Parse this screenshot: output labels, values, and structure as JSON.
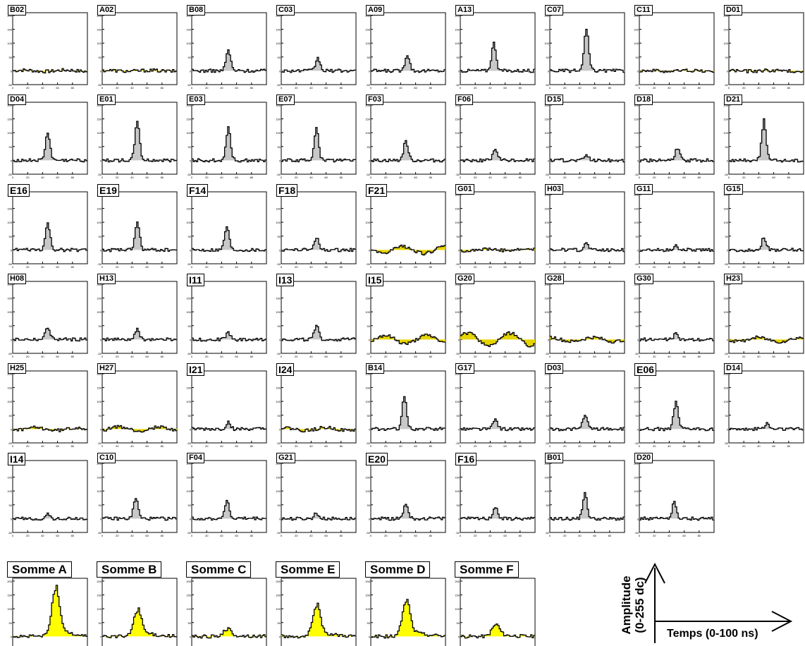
{
  "colors": {
    "fill_signal": "#c8c8c8",
    "fill_sum": "#ffff00",
    "fill_baseline": "#e6d400",
    "line": "#000000"
  },
  "axes": {
    "y_ticks": [
      "200",
      "150",
      "100",
      "50",
      "0",
      "-50"
    ],
    "x_ticks": [
      "0",
      "20",
      "40",
      "60",
      "80"
    ],
    "ylim": [
      -50,
      210
    ],
    "xlim": [
      0,
      100
    ]
  },
  "legend": {
    "y_label_1": "Amplitude",
    "y_label_2": "(0-255 dc)",
    "x_label": "Temps (0-100 ns)"
  },
  "chart_data": [
    {
      "type": "area",
      "title": "B02",
      "peak": {
        "x": null,
        "y": 5
      },
      "big": false
    },
    {
      "type": "area",
      "title": "A02",
      "peak": {
        "x": null,
        "y": 3
      },
      "big": false
    },
    {
      "type": "area",
      "title": "B08",
      "peak": {
        "x": 48,
        "y": 75
      },
      "big": false
    },
    {
      "type": "area",
      "title": "C03",
      "peak": {
        "x": 48,
        "y": 45
      },
      "big": false
    },
    {
      "type": "area",
      "title": "A09",
      "peak": {
        "x": 48,
        "y": 60
      },
      "big": false
    },
    {
      "type": "area",
      "title": "A13",
      "peak": {
        "x": 44,
        "y": 100
      },
      "big": false
    },
    {
      "type": "area",
      "title": "C07",
      "peak": {
        "x": 48,
        "y": 150
      },
      "big": false
    },
    {
      "type": "area",
      "title": "C11",
      "peak": {
        "x": null,
        "y": 3
      },
      "big": false
    },
    {
      "type": "area",
      "title": "D01",
      "peak": {
        "x": null,
        "y": 3
      },
      "big": false
    },
    {
      "type": "area",
      "title": "D04",
      "peak": {
        "x": 46,
        "y": 100
      },
      "big": false
    },
    {
      "type": "area",
      "title": "E01",
      "peak": {
        "x": 46,
        "y": 145
      },
      "big": false
    },
    {
      "type": "area",
      "title": "E03",
      "peak": {
        "x": 48,
        "y": 120
      },
      "big": false
    },
    {
      "type": "area",
      "title": "E07",
      "peak": {
        "x": 46,
        "y": 115
      },
      "big": false
    },
    {
      "type": "area",
      "title": "F03",
      "peak": {
        "x": 46,
        "y": 70
      },
      "big": false
    },
    {
      "type": "area",
      "title": "F06",
      "peak": {
        "x": 46,
        "y": 40
      },
      "big": false
    },
    {
      "type": "area",
      "title": "D15",
      "peak": {
        "x": 48,
        "y": 20
      },
      "big": false
    },
    {
      "type": "area",
      "title": "D18",
      "peak": {
        "x": 50,
        "y": 45
      },
      "big": false
    },
    {
      "type": "area",
      "title": "D21",
      "peak": {
        "x": 46,
        "y": 145
      },
      "big": false
    },
    {
      "type": "area",
      "title": "E16",
      "peak": {
        "x": 46,
        "y": 95
      },
      "big": true
    },
    {
      "type": "area",
      "title": "E19",
      "peak": {
        "x": 46,
        "y": 100
      },
      "big": true
    },
    {
      "type": "area",
      "title": "F14",
      "peak": {
        "x": 46,
        "y": 85
      },
      "big": true
    },
    {
      "type": "area",
      "title": "F18",
      "peak": {
        "x": 46,
        "y": 45
      },
      "big": true
    },
    {
      "type": "area",
      "title": "F21",
      "peak": {
        "x": null,
        "y": 25
      },
      "big": true
    },
    {
      "type": "area",
      "title": "G01",
      "peak": {
        "x": null,
        "y": 5
      },
      "big": false
    },
    {
      "type": "area",
      "title": "H03",
      "peak": {
        "x": 48,
        "y": 25
      },
      "big": false
    },
    {
      "type": "area",
      "title": "G11",
      "peak": {
        "x": 48,
        "y": 15
      },
      "big": false
    },
    {
      "type": "area",
      "title": "G15",
      "peak": {
        "x": 46,
        "y": 45
      },
      "big": false
    },
    {
      "type": "area",
      "title": "H08",
      "peak": {
        "x": 46,
        "y": 45
      },
      "big": false
    },
    {
      "type": "area",
      "title": "H13",
      "peak": {
        "x": 46,
        "y": 35
      },
      "big": false
    },
    {
      "type": "area",
      "title": "I11",
      "peak": {
        "x": 48,
        "y": 25
      },
      "big": true
    },
    {
      "type": "area",
      "title": "I13",
      "peak": {
        "x": 46,
        "y": 50
      },
      "big": true
    },
    {
      "type": "area",
      "title": "I15",
      "peak": {
        "x": null,
        "y": 30
      },
      "big": true
    },
    {
      "type": "area",
      "title": "G20",
      "peak": {
        "x": null,
        "y": 45
      },
      "big": false
    },
    {
      "type": "area",
      "title": "G28",
      "peak": {
        "x": null,
        "y": 15
      },
      "big": false
    },
    {
      "type": "area",
      "title": "G30",
      "peak": {
        "x": 48,
        "y": 20
      },
      "big": false
    },
    {
      "type": "area",
      "title": "H23",
      "peak": {
        "x": null,
        "y": 15
      },
      "big": false
    },
    {
      "type": "area",
      "title": "H25",
      "peak": {
        "x": null,
        "y": 10
      },
      "big": false
    },
    {
      "type": "area",
      "title": "H27",
      "peak": {
        "x": null,
        "y": 15
      },
      "big": false
    },
    {
      "type": "area",
      "title": "I21",
      "peak": {
        "x": 48,
        "y": 25
      },
      "big": true
    },
    {
      "type": "area",
      "title": "I24",
      "peak": {
        "x": null,
        "y": 10
      },
      "big": true
    },
    {
      "type": "area",
      "title": "B14",
      "peak": {
        "x": 44,
        "y": 115
      },
      "big": false
    },
    {
      "type": "area",
      "title": "G17",
      "peak": {
        "x": 46,
        "y": 35
      },
      "big": false
    },
    {
      "type": "area",
      "title": "D03",
      "peak": {
        "x": 46,
        "y": 50
      },
      "big": false
    },
    {
      "type": "area",
      "title": "E06",
      "peak": {
        "x": 48,
        "y": 95
      },
      "big": true
    },
    {
      "type": "area",
      "title": "D14",
      "peak": {
        "x": 50,
        "y": 20
      },
      "big": false
    },
    {
      "type": "area",
      "title": "I14",
      "peak": {
        "x": 46,
        "y": 15
      },
      "big": true
    },
    {
      "type": "area",
      "title": "C10",
      "peak": {
        "x": 44,
        "y": 75
      },
      "big": false
    },
    {
      "type": "area",
      "title": "F04",
      "peak": {
        "x": 46,
        "y": 65
      },
      "big": false
    },
    {
      "type": "area",
      "title": "G21",
      "peak": {
        "x": 46,
        "y": 20
      },
      "big": false
    },
    {
      "type": "area",
      "title": "E20",
      "peak": {
        "x": 46,
        "y": 55
      },
      "big": true
    },
    {
      "type": "area",
      "title": "F16",
      "peak": {
        "x": 46,
        "y": 45
      },
      "big": true
    },
    {
      "type": "area",
      "title": "B01",
      "peak": {
        "x": 46,
        "y": 90
      },
      "big": false
    },
    {
      "type": "area",
      "title": "D20",
      "peak": {
        "x": 46,
        "y": 60
      },
      "big": false
    },
    {
      "type": "area",
      "title": "Somme A",
      "peak": {
        "x": 56,
        "y": 160
      },
      "sum": true
    },
    {
      "type": "area",
      "title": "Somme B",
      "peak": {
        "x": 46,
        "y": 90
      },
      "sum": true
    },
    {
      "type": "area",
      "title": "Somme C",
      "peak": {
        "x": 46,
        "y": 25
      },
      "sum": true
    },
    {
      "type": "area",
      "title": "Somme E",
      "peak": {
        "x": 46,
        "y": 100
      },
      "sum": true
    },
    {
      "type": "area",
      "title": "Somme D",
      "peak": {
        "x": 46,
        "y": 120
      },
      "sum": true
    },
    {
      "type": "area",
      "title": "Somme F",
      "peak": {
        "x": 46,
        "y": 40
      },
      "sum": true
    }
  ]
}
